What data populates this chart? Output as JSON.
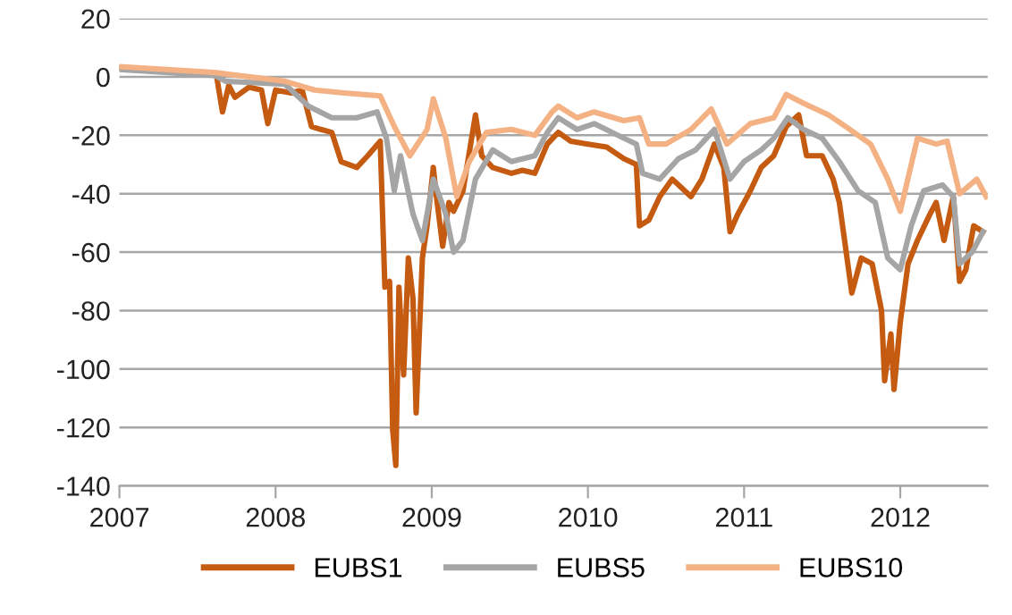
{
  "chart_data": {
    "type": "line",
    "xlim": [
      2007,
      2012.56
    ],
    "xticks": [
      2007,
      2008,
      2009,
      2010,
      2011,
      2012
    ],
    "ylim": [
      -140,
      20
    ],
    "yticks": [
      20,
      0,
      -20,
      -40,
      -60,
      -80,
      -100,
      -120,
      -140
    ],
    "grid": "y",
    "legend": "bottom",
    "line_style": "solid",
    "marker": "none",
    "series": [
      {
        "name": "EUBS1",
        "color": "#c55a11",
        "x": [
          2007.0,
          2007.3,
          2007.62,
          2007.66,
          2007.7,
          2007.74,
          2007.83,
          2007.91,
          2007.95,
          2008.0,
          2008.1,
          2008.17,
          2008.23,
          2008.29,
          2008.36,
          2008.42,
          2008.52,
          2008.59,
          2008.67,
          2008.7,
          2008.73,
          2008.75,
          2008.77,
          2008.79,
          2008.82,
          2008.85,
          2008.88,
          2008.9,
          2008.94,
          2008.97,
          2009.01,
          2009.03,
          2009.07,
          2009.11,
          2009.14,
          2009.2,
          2009.28,
          2009.32,
          2009.39,
          2009.51,
          2009.58,
          2009.66,
          2009.74,
          2009.81,
          2009.89,
          2010.0,
          2010.12,
          2010.23,
          2010.31,
          2010.33,
          2010.39,
          2010.46,
          2010.54,
          2010.66,
          2010.73,
          2010.81,
          2010.87,
          2010.91,
          2010.96,
          2011.04,
          2011.11,
          2011.19,
          2011.27,
          2011.35,
          2011.4,
          2011.5,
          2011.57,
          2011.61,
          2011.69,
          2011.75,
          2011.82,
          2011.88,
          2011.9,
          2011.94,
          2011.96,
          2012.0,
          2012.05,
          2012.11,
          2012.19,
          2012.23,
          2012.28,
          2012.34,
          2012.38,
          2012.42,
          2012.47,
          2012.53
        ],
        "values": [
          3,
          2,
          1,
          -12,
          -3,
          -7,
          -3.5,
          -4.5,
          -16,
          -4.5,
          -5.5,
          -4.5,
          -17,
          -18,
          -19,
          -29,
          -31,
          -27,
          -22,
          -72,
          -70,
          -121,
          -133,
          -72,
          -102,
          -62,
          -76,
          -115,
          -62,
          -51,
          -31,
          -41,
          -58,
          -43,
          -46,
          -39,
          -13,
          -27,
          -31,
          -33,
          -32,
          -33,
          -23,
          -19,
          -22,
          -23,
          -24,
          -28,
          -30,
          -51,
          -49,
          -41,
          -35,
          -41,
          -35,
          -23,
          -31,
          -53,
          -47,
          -39,
          -31,
          -27,
          -17,
          -13,
          -27,
          -27,
          -35,
          -43,
          -74,
          -62,
          -64,
          -80,
          -104,
          -88,
          -107,
          -84,
          -64,
          -56,
          -47,
          -43,
          -56,
          -41,
          -70,
          -66,
          -51,
          -53
        ]
      },
      {
        "name": "EUBS5",
        "color": "#a5a5a5",
        "x": [
          2007.0,
          2007.61,
          2007.68,
          2008.06,
          2008.21,
          2008.36,
          2008.52,
          2008.65,
          2008.71,
          2008.76,
          2008.8,
          2008.88,
          2008.94,
          2009.01,
          2009.09,
          2009.14,
          2009.2,
          2009.28,
          2009.39,
          2009.51,
          2009.66,
          2009.74,
          2009.81,
          2009.93,
          2010.04,
          2010.23,
          2010.31,
          2010.35,
          2010.46,
          2010.58,
          2010.69,
          2010.81,
          2010.91,
          2011.0,
          2011.11,
          2011.19,
          2011.28,
          2011.38,
          2011.5,
          2011.61,
          2011.73,
          2011.84,
          2011.92,
          2012.0,
          2012.07,
          2012.15,
          2012.27,
          2012.34,
          2012.38,
          2012.46,
          2012.53
        ],
        "values": [
          2.5,
          0.5,
          -1.5,
          -2.5,
          -10,
          -14,
          -14,
          -12,
          -21,
          -39,
          -27,
          -47,
          -56,
          -35,
          -47,
          -60,
          -56,
          -35,
          -25,
          -29,
          -27,
          -19,
          -14,
          -18,
          -16,
          -21,
          -23,
          -33,
          -35,
          -28,
          -25,
          -18,
          -35,
          -29,
          -25,
          -21,
          -14,
          -18,
          -21,
          -29,
          -39,
          -43,
          -62,
          -66,
          -51,
          -39,
          -37,
          -41,
          -64,
          -60,
          -53
        ]
      },
      {
        "name": "EUBS10",
        "color": "#f4b183",
        "x": [
          2007.0,
          2007.61,
          2008.06,
          2008.25,
          2008.44,
          2008.67,
          2008.76,
          2008.86,
          2008.97,
          2009.01,
          2009.09,
          2009.16,
          2009.24,
          2009.35,
          2009.51,
          2009.66,
          2009.77,
          2009.81,
          2009.93,
          2010.04,
          2010.23,
          2010.33,
          2010.39,
          2010.5,
          2010.66,
          2010.79,
          2010.89,
          2011.04,
          2011.19,
          2011.27,
          2011.38,
          2011.54,
          2011.65,
          2011.81,
          2011.92,
          2012.0,
          2012.11,
          2012.23,
          2012.3,
          2012.38,
          2012.49,
          2012.55
        ],
        "values": [
          3.5,
          1.5,
          -1.5,
          -4.5,
          -5.5,
          -6.5,
          -17,
          -27,
          -18,
          -7.5,
          -21,
          -41,
          -29,
          -19,
          -18,
          -20,
          -12,
          -10,
          -14,
          -12,
          -15,
          -14,
          -23,
          -23,
          -18,
          -11,
          -23,
          -16,
          -14,
          -6,
          -9,
          -13,
          -17,
          -23,
          -35,
          -46,
          -21,
          -23,
          -22,
          -40,
          -35,
          -41
        ]
      }
    ]
  }
}
